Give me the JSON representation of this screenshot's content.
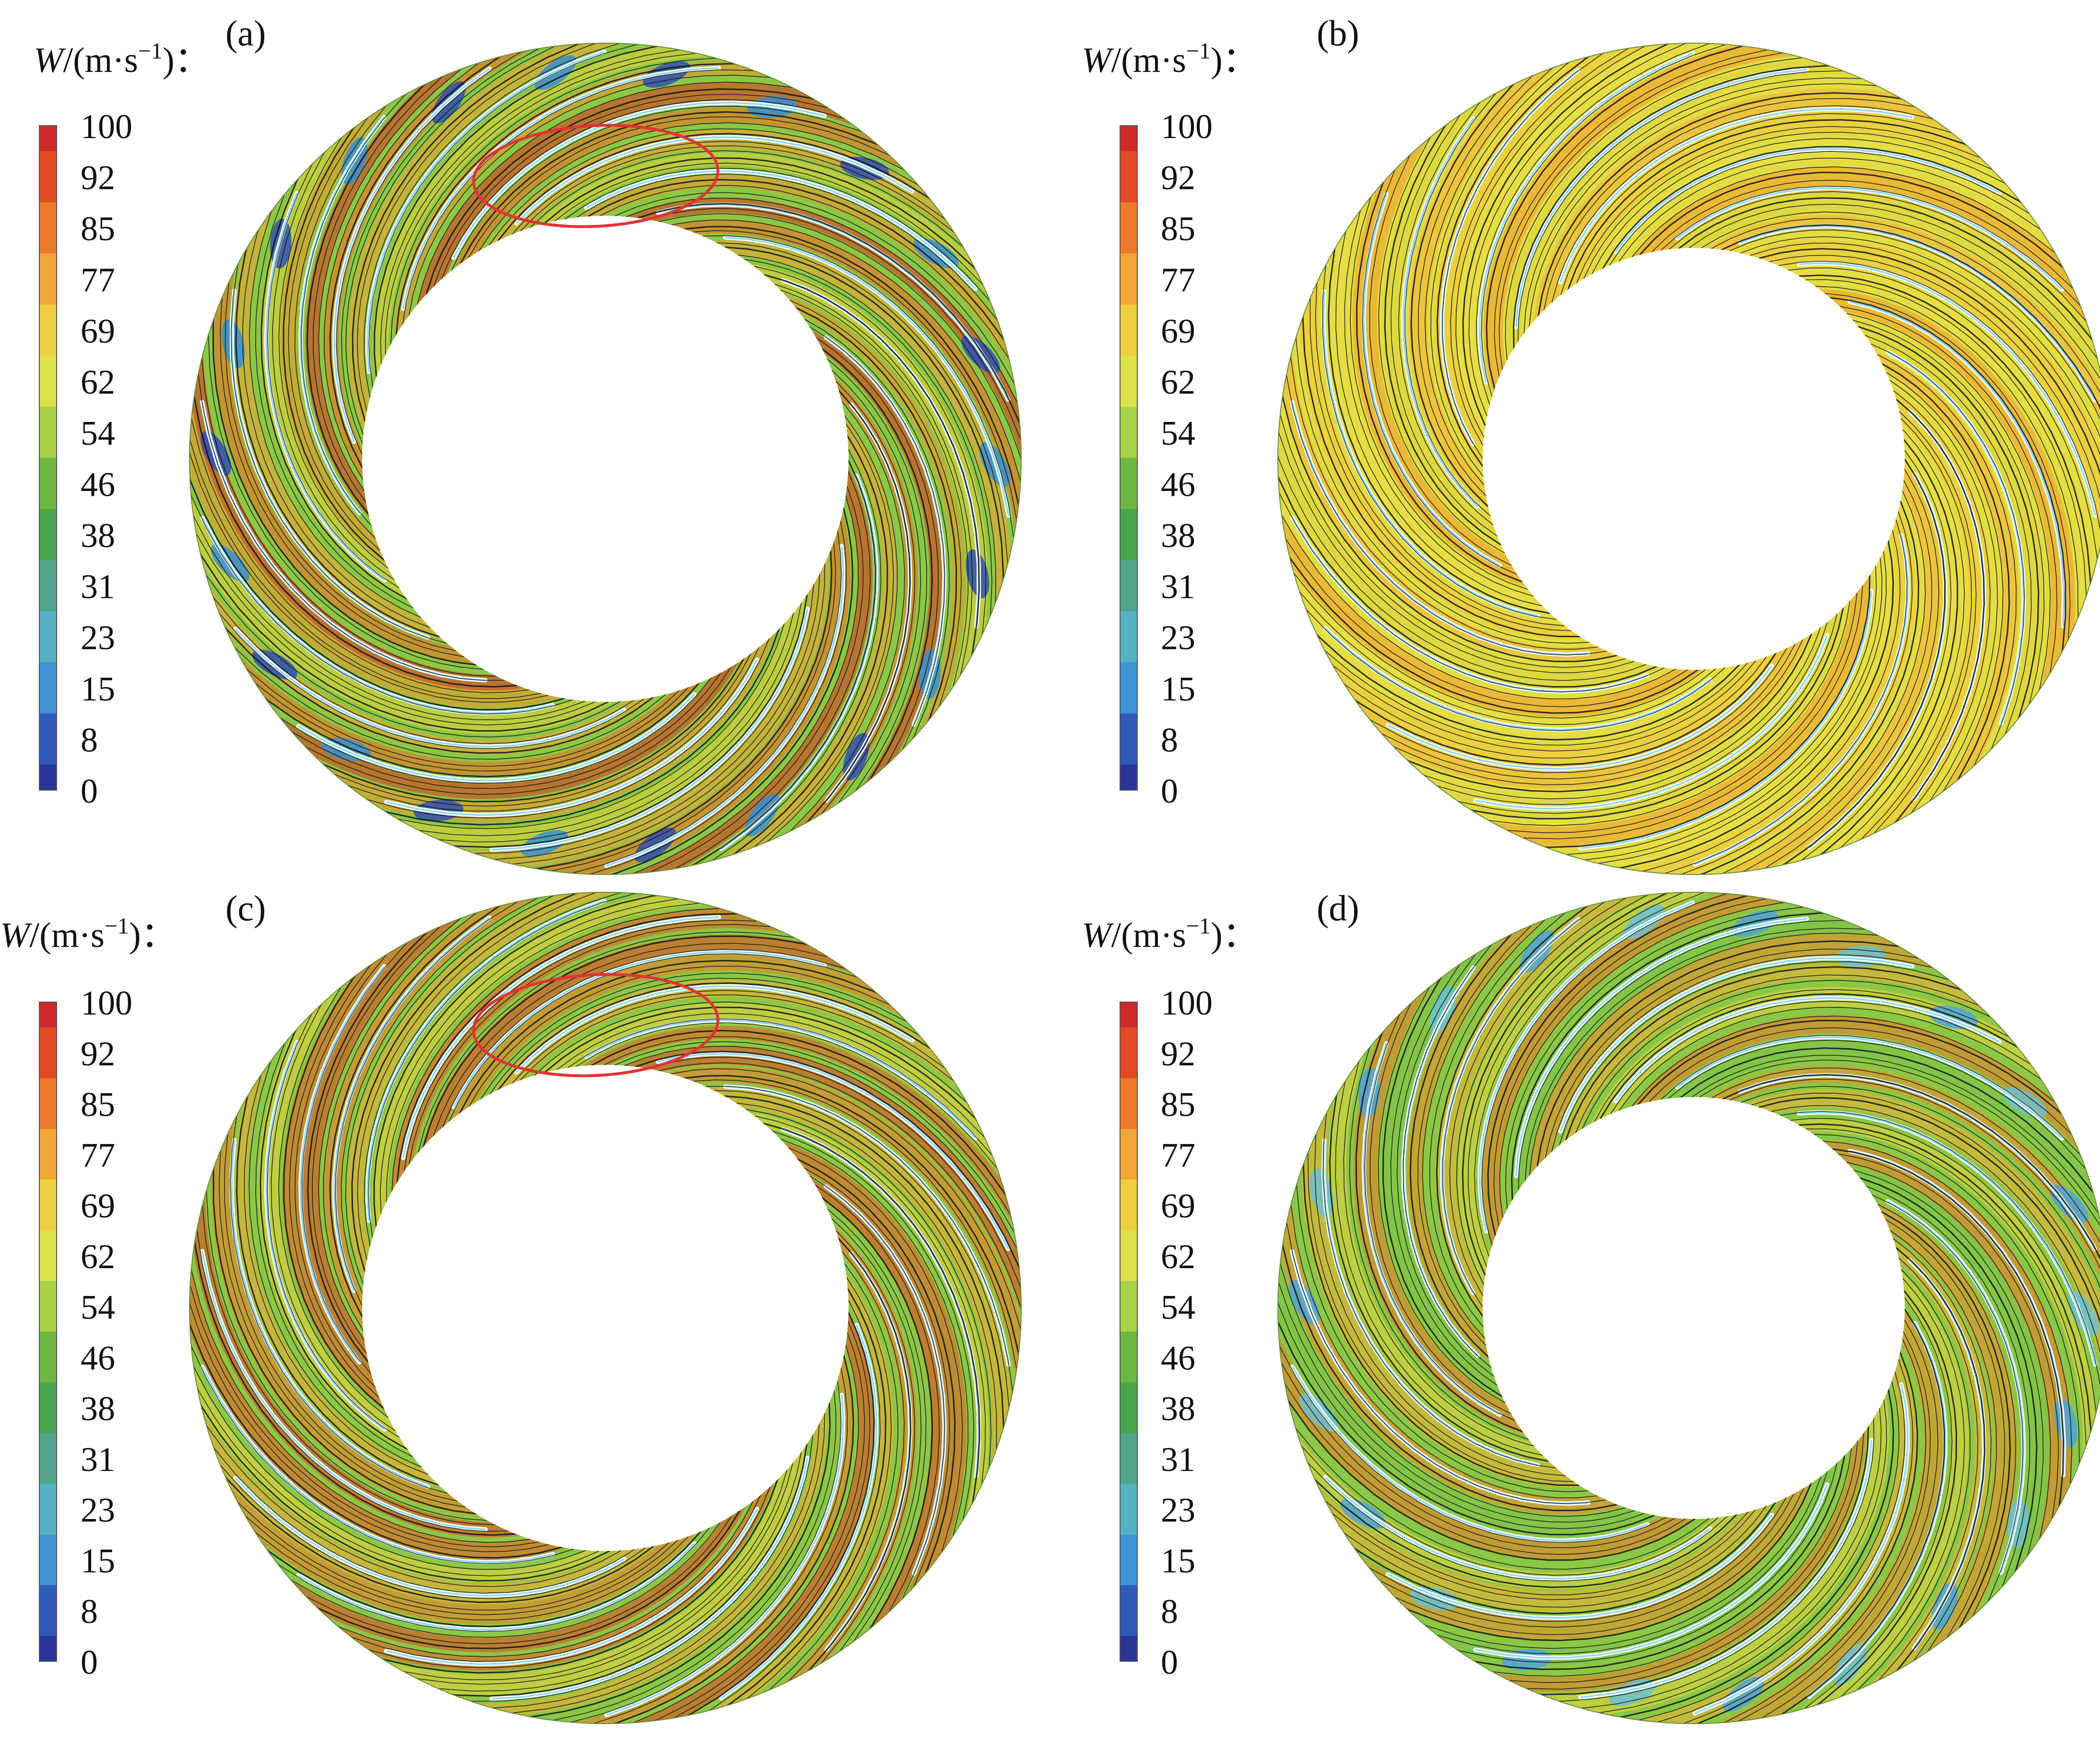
{
  "colorbar": {
    "ticks": [
      "100",
      "92",
      "85",
      "77",
      "69",
      "62",
      "54",
      "46",
      "38",
      "31",
      "23",
      "15",
      "8",
      "0"
    ],
    "colors": [
      "#cc2a2a",
      "#e04a24",
      "#ec7a2a",
      "#f1a637",
      "#eecf3f",
      "#dbe24a",
      "#a9d24a",
      "#6cb842",
      "#4aa64e",
      "#4ea58a",
      "#56b1c2",
      "#3f93d6",
      "#2f58b8",
      "#2a3496"
    ]
  },
  "panels": [
    {
      "label": "(a)",
      "title_symbol": "W",
      "title_unit": "/(m·s",
      "title_exp": "−1",
      "title_end": ")：",
      "red_ellipse": true,
      "low_pockets": "strong",
      "streak_colors": [
        "#d8331f",
        "#ef6a24",
        "#f3a334",
        "#e6d23e",
        "#f0932e"
      ]
    },
    {
      "label": "(b)",
      "title_symbol": "W",
      "title_unit": "/(m·s",
      "title_exp": "−1",
      "title_end": ")：",
      "red_ellipse": false,
      "low_pockets": "none",
      "streak_colors": [
        "#f2b13a",
        "#f0c63c",
        "#e9df47",
        "#f39a30",
        "#dcd640"
      ]
    },
    {
      "label": "(c)",
      "title_symbol": "W",
      "title_unit": "/(m·s",
      "title_exp": "−1",
      "title_end": ")：",
      "red_ellipse": true,
      "low_pockets": "none",
      "streak_colors": [
        "#e04322",
        "#ef7a2a",
        "#f2a936",
        "#ead43f",
        "#e85a26"
      ]
    },
    {
      "label": "(d)",
      "title_symbol": "W",
      "title_unit": "/(m·s",
      "title_exp": "−1",
      "title_end": ")：",
      "red_ellipse": false,
      "low_pockets": "weak",
      "streak_colors": [
        "#ee8a2c",
        "#f2ae37",
        "#e6d53f",
        "#ec7628",
        "#7cc34a"
      ]
    }
  ]
}
